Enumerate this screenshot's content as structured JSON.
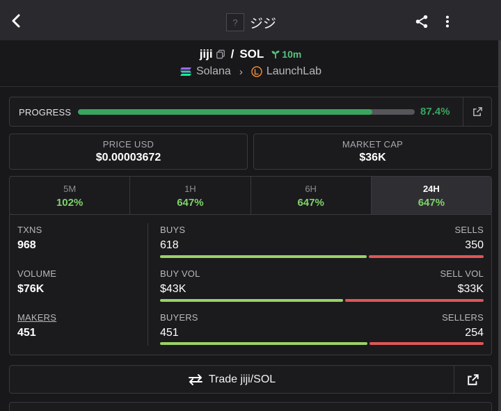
{
  "header": {
    "title": "ジジ",
    "placeholder_glyph": "?"
  },
  "pair": {
    "base": "jiji",
    "separator": "/",
    "quote": "SOL",
    "age": "10m"
  },
  "chain": {
    "network": "Solana",
    "dex": "LaunchLab"
  },
  "progress": {
    "label": "PROGRESS",
    "value_text": "87.4%",
    "fraction": 0.874
  },
  "price": {
    "label": "PRICE USD",
    "value": "$0.00003672"
  },
  "market_cap": {
    "label": "MARKET CAP",
    "value": "$36K"
  },
  "tabs": [
    {
      "label": "5M",
      "value": "102%"
    },
    {
      "label": "1H",
      "value": "647%"
    },
    {
      "label": "6H",
      "value": "647%"
    },
    {
      "label": "24H",
      "value": "647%",
      "active": true
    }
  ],
  "stats": {
    "txns": {
      "label": "TXNS",
      "value": "968"
    },
    "volume": {
      "label": "VOLUME",
      "value": "$76K"
    },
    "makers": {
      "label": "MAKERS",
      "value": "451"
    },
    "buys": {
      "label": "BUYS",
      "value": "618",
      "share": 0.638
    },
    "sells": {
      "label": "SELLS",
      "value": "350"
    },
    "buy_vol": {
      "label": "BUY VOL",
      "value": "$43K",
      "share": 0.566
    },
    "sell_vol": {
      "label": "SELL VOL",
      "value": "$33K"
    },
    "buyers": {
      "label": "BUYERS",
      "value": "451",
      "share": 0.64
    },
    "sellers": {
      "label": "SELLERS",
      "value": "254"
    }
  },
  "trade": {
    "label": "Trade jiji/SOL"
  },
  "colors": {
    "green": "#3aa55e",
    "buy_bar": "#9bd266",
    "sell_bar": "#e05757",
    "age": "#58c27d"
  },
  "icons": [
    "back-icon",
    "share-icon",
    "more-icon",
    "copy-icon",
    "sprout-icon",
    "solana-icon",
    "launchlab-icon",
    "chevron-right-icon",
    "external-link-icon",
    "swap-icon"
  ]
}
